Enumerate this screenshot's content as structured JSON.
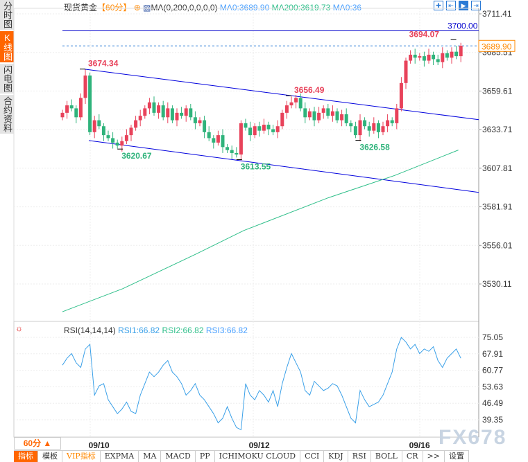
{
  "side_tabs": [
    {
      "label": "分时图",
      "active": false
    },
    {
      "label": "K线图",
      "active": true
    },
    {
      "label": "闪电图",
      "active": false
    },
    {
      "label": "合约资料",
      "active": false
    }
  ],
  "header": {
    "symbol": "现货黄金",
    "period": "【60分】",
    "ma_label": "MA(0,200,0,0,0,0)",
    "ma0": "MA0:3689.90",
    "ma200": "MA200:3619.73",
    "ma0b": "MA0:36"
  },
  "tools": [
    "crosshair",
    "fit",
    "zoom-to-end",
    "scroll-end"
  ],
  "colors": {
    "up": "#e8425a",
    "down": "#2fb37b",
    "channel": "#0000dd",
    "ma200": "#2fbf8a",
    "rsi": "#3aa0e8",
    "accent": "#ff6600"
  },
  "chart_data": {
    "type": "candlestick",
    "price_axis": {
      "ticks": [
        "3711.41",
        "3685.51",
        "3659.61",
        "3633.71",
        "3607.81",
        "3581.91",
        "3556.01",
        "3530.11"
      ],
      "range": [
        3530.11,
        3711.41
      ]
    },
    "closes": [
      3645,
      3650,
      3648,
      3642,
      3655,
      3670,
      3632,
      3640,
      3636,
      3630,
      3628,
      3625,
      3623,
      3626,
      3630,
      3635,
      3640,
      3643,
      3648,
      3652,
      3645,
      3650,
      3642,
      3648,
      3640,
      3645,
      3643,
      3648,
      3642,
      3638,
      3640,
      3632,
      3628,
      3625,
      3630,
      3622,
      3620,
      3618,
      3617,
      3638,
      3635,
      3630,
      3636,
      3633,
      3637,
      3634,
      3632,
      3636,
      3645,
      3650,
      3652,
      3655,
      3648,
      3642,
      3646,
      3640,
      3645,
      3648,
      3643,
      3646,
      3640,
      3644,
      3638,
      3636,
      3630,
      3640,
      3636,
      3633,
      3638,
      3632,
      3636,
      3640,
      3638,
      3648,
      3665,
      3680,
      3684,
      3682,
      3683,
      3680,
      3684,
      3681,
      3679,
      3685,
      3682,
      3686,
      3683,
      3690
    ],
    "annotations": [
      {
        "label": "3674.34",
        "i": 5,
        "price": 3674.34,
        "color": "up"
      },
      {
        "label": "3620.67",
        "i": 12,
        "price": 3620.67,
        "color": "down"
      },
      {
        "label": "3613.55",
        "i": 38,
        "price": 3613.55,
        "color": "down"
      },
      {
        "label": "3656.49",
        "i": 50,
        "price": 3656.49,
        "color": "up"
      },
      {
        "label": "3626.58",
        "i": 64,
        "price": 3626.58,
        "color": "down"
      },
      {
        "label": "3694.07",
        "i": 86,
        "price": 3694.07,
        "color": "up"
      }
    ],
    "hline": {
      "label": "3700.00",
      "price": 3700.0
    },
    "last_price": "3689.90",
    "ma200": [
      [
        0,
        3511.5
      ],
      [
        20,
        3527
      ],
      [
        44,
        3550
      ],
      [
        60,
        3566
      ],
      [
        88,
        3588
      ],
      [
        110,
        3603
      ],
      [
        131,
        3620
      ]
    ],
    "rsi": {
      "label": "RSI(14,14,14)",
      "rsi1": "RSI1:66.82",
      "rsi2": "RSI2:66.82",
      "rsi3": "RSI3:66.82",
      "ticks": [
        "75.05",
        "67.91",
        "60.77",
        "53.63",
        "46.49",
        "39.35"
      ],
      "range": [
        39.35,
        75.05
      ],
      "values": [
        63,
        66,
        68,
        64,
        62,
        70,
        72,
        50,
        54,
        55,
        48,
        45,
        42,
        44,
        47,
        43,
        42,
        50,
        55,
        60,
        58,
        60,
        63,
        65,
        60,
        58,
        55,
        50,
        52,
        55,
        50,
        48,
        45,
        42,
        38,
        40,
        45,
        40,
        36,
        35,
        55,
        50,
        48,
        52,
        50,
        47,
        52,
        45,
        55,
        62,
        68,
        64,
        60,
        52,
        50,
        56,
        54,
        52,
        53,
        55,
        54,
        50,
        45,
        40,
        38,
        52,
        48,
        45,
        46,
        47,
        50,
        55,
        60,
        70,
        75,
        73,
        70,
        72,
        68,
        70,
        69,
        71,
        65,
        62,
        66,
        68,
        70,
        66
      ]
    },
    "dates": [
      {
        "label": "09/10",
        "i": 6
      },
      {
        "label": "09/12",
        "i": 41
      },
      {
        "label": "09/16",
        "i": 76
      }
    ]
  },
  "period_button": "60分 ▲",
  "watermark": "FX678",
  "toolbar": [
    "指标",
    "模板",
    "VIP指标",
    "EXPMA",
    "MA",
    "MACD",
    "PP",
    "ICHIMOKU CLOUD",
    "CCI",
    "KDJ",
    "RSI",
    "BOLL",
    "CR",
    ">>",
    "设置"
  ]
}
